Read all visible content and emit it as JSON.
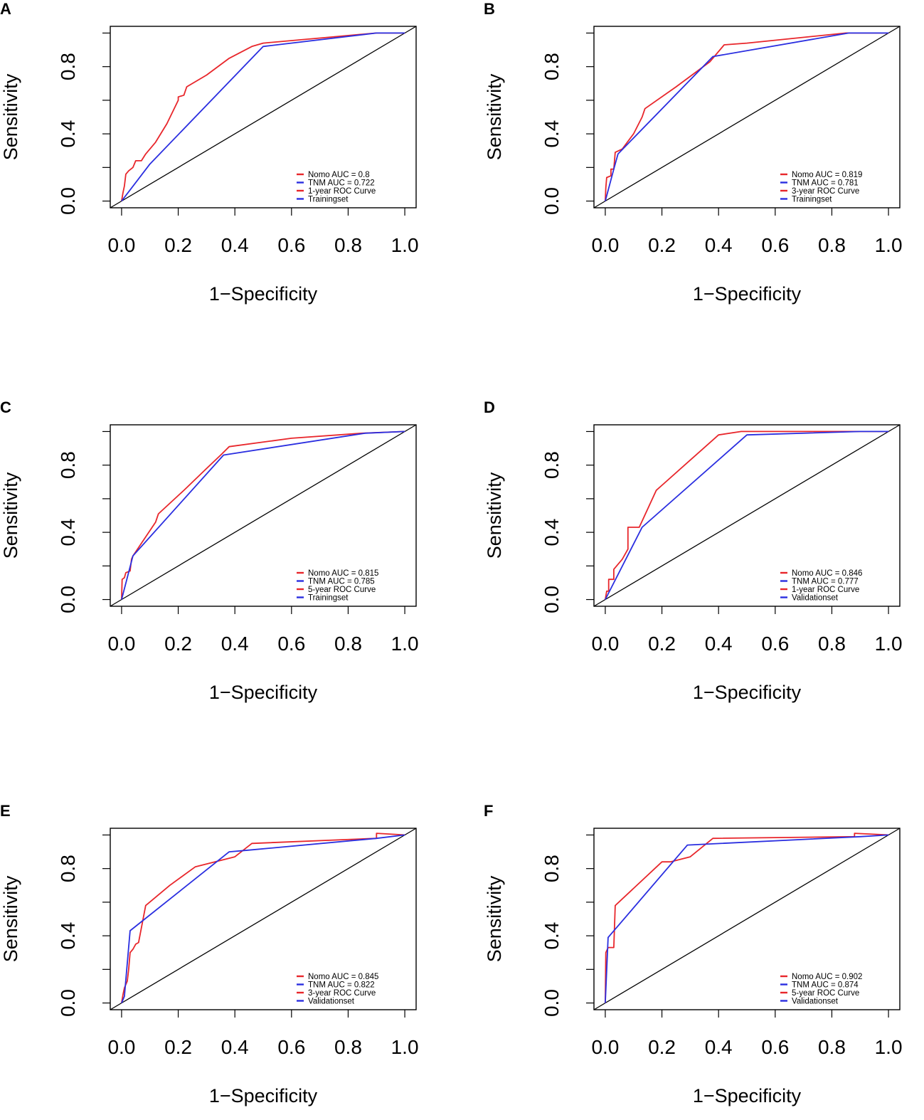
{
  "figure": {
    "type": "roc-panel-grid"
  },
  "chart_data": [
    {
      "panel": "A",
      "type": "line",
      "xlabel": "1−Specificity",
      "ylabel": "Sensitivity",
      "xlim": [
        -0.04,
        1.04
      ],
      "ylim": [
        -0.04,
        1.04
      ],
      "xticks": [
        "0.0",
        "0.2",
        "0.4",
        "0.6",
        "0.8",
        "1.0"
      ],
      "yticks": [
        "0.0",
        "0.4",
        "0.8"
      ],
      "diagonal": true,
      "legend": {
        "position": "bottom-right",
        "entries": [
          {
            "label": "Nomo AUC = 0.8",
            "color": "#e8262b"
          },
          {
            "label": "TNM AUC = 0.722",
            "color": "#2a2ee0"
          },
          {
            "label": "1-year ROC Curve",
            "color": "#e8262b"
          },
          {
            "label": "Trainingset",
            "color": "#2a2ee0"
          }
        ]
      },
      "series": [
        {
          "name": "Nomo",
          "color": "#e8262b",
          "points": [
            [
              0,
              0
            ],
            [
              0.005,
              0.05
            ],
            [
              0.01,
              0.09
            ],
            [
              0.015,
              0.16
            ],
            [
              0.025,
              0.18
            ],
            [
              0.04,
              0.2
            ],
            [
              0.05,
              0.24
            ],
            [
              0.07,
              0.24
            ],
            [
              0.085,
              0.28
            ],
            [
              0.12,
              0.35
            ],
            [
              0.16,
              0.46
            ],
            [
              0.2,
              0.6
            ],
            [
              0.2,
              0.62
            ],
            [
              0.22,
              0.63
            ],
            [
              0.23,
              0.68
            ],
            [
              0.3,
              0.75
            ],
            [
              0.38,
              0.85
            ],
            [
              0.46,
              0.92
            ],
            [
              0.5,
              0.94
            ],
            [
              0.7,
              0.97
            ],
            [
              0.9,
              1.0
            ],
            [
              1.0,
              1.0
            ]
          ]
        },
        {
          "name": "TNM",
          "color": "#2a2ee0",
          "points": [
            [
              0,
              0
            ],
            [
              0.1,
              0.22
            ],
            [
              0.5,
              0.92
            ],
            [
              0.9,
              1.0
            ],
            [
              1.0,
              1.0
            ]
          ]
        }
      ]
    },
    {
      "panel": "B",
      "type": "line",
      "xlabel": "1−Specificity",
      "ylabel": "Sensitivity",
      "xlim": [
        -0.04,
        1.04
      ],
      "ylim": [
        -0.04,
        1.04
      ],
      "xticks": [
        "0.0",
        "0.2",
        "0.4",
        "0.6",
        "0.8",
        "1.0"
      ],
      "yticks": [
        "0.0",
        "0.4",
        "0.8"
      ],
      "diagonal": true,
      "legend": {
        "position": "bottom-right",
        "entries": [
          {
            "label": "Nomo AUC = 0.819",
            "color": "#e8262b"
          },
          {
            "label": "TNM AUC = 0.781",
            "color": "#2a2ee0"
          },
          {
            "label": "3-year ROC Curve",
            "color": "#e8262b"
          },
          {
            "label": "Trainingset",
            "color": "#2a2ee0"
          }
        ]
      },
      "series": [
        {
          "name": "Nomo",
          "color": "#e8262b",
          "points": [
            [
              0,
              0
            ],
            [
              0.002,
              0.08
            ],
            [
              0.005,
              0.14
            ],
            [
              0.02,
              0.15
            ],
            [
              0.02,
              0.19
            ],
            [
              0.03,
              0.19
            ],
            [
              0.035,
              0.29
            ],
            [
              0.06,
              0.31
            ],
            [
              0.1,
              0.4
            ],
            [
              0.13,
              0.5
            ],
            [
              0.14,
              0.55
            ],
            [
              0.25,
              0.68
            ],
            [
              0.37,
              0.83
            ],
            [
              0.42,
              0.93
            ],
            [
              0.5,
              0.94
            ],
            [
              0.85,
              1.0
            ],
            [
              1.0,
              1.0
            ]
          ]
        },
        {
          "name": "TNM",
          "color": "#2a2ee0",
          "points": [
            [
              0,
              0
            ],
            [
              0.03,
              0.19
            ],
            [
              0.045,
              0.28
            ],
            [
              0.38,
              0.86
            ],
            [
              0.86,
              1.0
            ],
            [
              1.0,
              1.0
            ]
          ]
        }
      ]
    },
    {
      "panel": "C",
      "type": "line",
      "xlabel": "1−Specificity",
      "ylabel": "Sensitivity",
      "xlim": [
        -0.04,
        1.04
      ],
      "ylim": [
        -0.04,
        1.04
      ],
      "xticks": [
        "0.0",
        "0.2",
        "0.4",
        "0.6",
        "0.8",
        "1.0"
      ],
      "yticks": [
        "0.0",
        "0.4",
        "0.8"
      ],
      "diagonal": true,
      "legend": {
        "position": "bottom-right",
        "entries": [
          {
            "label": "Nomo AUC = 0.815",
            "color": "#e8262b"
          },
          {
            "label": "TNM AUC = 0.785",
            "color": "#2a2ee0"
          },
          {
            "label": "5-year ROC Curve",
            "color": "#e8262b"
          },
          {
            "label": "Trainingset",
            "color": "#2a2ee0"
          }
        ]
      },
      "series": [
        {
          "name": "Nomo",
          "color": "#e8262b",
          "points": [
            [
              0,
              0
            ],
            [
              0.002,
              0.12
            ],
            [
              0.01,
              0.13
            ],
            [
              0.015,
              0.16
            ],
            [
              0.03,
              0.17
            ],
            [
              0.035,
              0.24
            ],
            [
              0.04,
              0.26
            ],
            [
              0.12,
              0.46
            ],
            [
              0.13,
              0.51
            ],
            [
              0.22,
              0.65
            ],
            [
              0.3,
              0.78
            ],
            [
              0.35,
              0.86
            ],
            [
              0.38,
              0.91
            ],
            [
              0.6,
              0.96
            ],
            [
              0.85,
              0.99
            ],
            [
              1.0,
              1.0
            ]
          ]
        },
        {
          "name": "TNM",
          "color": "#2a2ee0",
          "points": [
            [
              0,
              0
            ],
            [
              0.04,
              0.26
            ],
            [
              0.36,
              0.86
            ],
            [
              0.86,
              0.99
            ],
            [
              1.0,
              1.0
            ]
          ]
        }
      ]
    },
    {
      "panel": "D",
      "type": "line",
      "xlabel": "1−Specificity",
      "ylabel": "Sensitivity",
      "xlim": [
        -0.04,
        1.04
      ],
      "ylim": [
        -0.04,
        1.04
      ],
      "xticks": [
        "0.0",
        "0.2",
        "0.4",
        "0.6",
        "0.8",
        "1.0"
      ],
      "yticks": [
        "0.0",
        "0.4",
        "0.8"
      ],
      "diagonal": true,
      "legend": {
        "position": "bottom-right",
        "entries": [
          {
            "label": "Nomo AUC = 0.846",
            "color": "#e8262b"
          },
          {
            "label": "TNM AUC = 0.777",
            "color": "#2a2ee0"
          },
          {
            "label": "1-year ROC Curve",
            "color": "#e8262b"
          },
          {
            "label": "Validationset",
            "color": "#2a2ee0"
          }
        ]
      },
      "series": [
        {
          "name": "Nomo",
          "color": "#e8262b",
          "points": [
            [
              0,
              0
            ],
            [
              0.005,
              0.05
            ],
            [
              0.012,
              0.05
            ],
            [
              0.012,
              0.12
            ],
            [
              0.03,
              0.12
            ],
            [
              0.03,
              0.18
            ],
            [
              0.06,
              0.24
            ],
            [
              0.08,
              0.3
            ],
            [
              0.08,
              0.43
            ],
            [
              0.12,
              0.43
            ],
            [
              0.18,
              0.65
            ],
            [
              0.2,
              0.68
            ],
            [
              0.3,
              0.83
            ],
            [
              0.4,
              0.98
            ],
            [
              0.48,
              1.0
            ],
            [
              1.0,
              1.0
            ]
          ]
        },
        {
          "name": "TNM",
          "color": "#2a2ee0",
          "points": [
            [
              0,
              0
            ],
            [
              0.13,
              0.43
            ],
            [
              0.5,
              0.98
            ],
            [
              0.9,
              1.0
            ],
            [
              1.0,
              1.0
            ]
          ]
        }
      ]
    },
    {
      "panel": "E",
      "type": "line",
      "xlabel": "1−Specificity",
      "ylabel": "Sensitivity",
      "xlim": [
        -0.04,
        1.04
      ],
      "ylim": [
        -0.04,
        1.04
      ],
      "xticks": [
        "0.0",
        "0.2",
        "0.4",
        "0.6",
        "0.8",
        "1.0"
      ],
      "yticks": [
        "0.0",
        "0.4",
        "0.8"
      ],
      "diagonal": true,
      "legend": {
        "position": "bottom-right",
        "entries": [
          {
            "label": "Nomo AUC = 0.845",
            "color": "#e8262b"
          },
          {
            "label": "TNM AUC = 0.822",
            "color": "#2a2ee0"
          },
          {
            "label": "3-year ROC Curve",
            "color": "#e8262b"
          },
          {
            "label": "Validationset",
            "color": "#2a2ee0"
          }
        ]
      },
      "series": [
        {
          "name": "Nomo",
          "color": "#e8262b",
          "points": [
            [
              0,
              0
            ],
            [
              0.005,
              0.05
            ],
            [
              0.01,
              0.09
            ],
            [
              0.02,
              0.13
            ],
            [
              0.025,
              0.2
            ],
            [
              0.03,
              0.3
            ],
            [
              0.04,
              0.32
            ],
            [
              0.05,
              0.35
            ],
            [
              0.06,
              0.36
            ],
            [
              0.085,
              0.58
            ],
            [
              0.17,
              0.7
            ],
            [
              0.26,
              0.81
            ],
            [
              0.4,
              0.87
            ],
            [
              0.46,
              0.95
            ],
            [
              0.9,
              0.98
            ],
            [
              0.9,
              1.01
            ],
            [
              1.0,
              1.0
            ]
          ]
        },
        {
          "name": "TNM",
          "color": "#2a2ee0",
          "points": [
            [
              0,
              0
            ],
            [
              0.01,
              0.04
            ],
            [
              0.03,
              0.43
            ],
            [
              0.38,
              0.9
            ],
            [
              0.45,
              0.91
            ],
            [
              0.9,
              0.98
            ],
            [
              1.0,
              1.0
            ]
          ]
        }
      ]
    },
    {
      "panel": "F",
      "type": "line",
      "xlabel": "1−Specificity",
      "ylabel": "Sensitivity",
      "xlim": [
        -0.04,
        1.04
      ],
      "ylim": [
        -0.04,
        1.04
      ],
      "xticks": [
        "0.0",
        "0.2",
        "0.4",
        "0.6",
        "0.8",
        "1.0"
      ],
      "yticks": [
        "0.0",
        "0.4",
        "0.8"
      ],
      "diagonal": true,
      "legend": {
        "position": "bottom-right",
        "entries": [
          {
            "label": "Nomo AUC = 0.902",
            "color": "#e8262b"
          },
          {
            "label": "TNM AUC = 0.874",
            "color": "#2a2ee0"
          },
          {
            "label": "5-year ROC Curve",
            "color": "#e8262b"
          },
          {
            "label": "Validationset",
            "color": "#2a2ee0"
          }
        ]
      },
      "series": [
        {
          "name": "Nomo",
          "color": "#e8262b",
          "points": [
            [
              0,
              0
            ],
            [
              0.002,
              0.3
            ],
            [
              0.01,
              0.33
            ],
            [
              0.03,
              0.33
            ],
            [
              0.035,
              0.58
            ],
            [
              0.2,
              0.84
            ],
            [
              0.23,
              0.84
            ],
            [
              0.3,
              0.87
            ],
            [
              0.38,
              0.98
            ],
            [
              0.88,
              0.99
            ],
            [
              0.88,
              1.01
            ],
            [
              1.0,
              1.0
            ]
          ]
        },
        {
          "name": "TNM",
          "color": "#2a2ee0",
          "points": [
            [
              0,
              0
            ],
            [
              0.01,
              0.39
            ],
            [
              0.02,
              0.41
            ],
            [
              0.29,
              0.94
            ],
            [
              0.9,
              0.99
            ],
            [
              1.0,
              1.0
            ]
          ]
        }
      ]
    }
  ]
}
